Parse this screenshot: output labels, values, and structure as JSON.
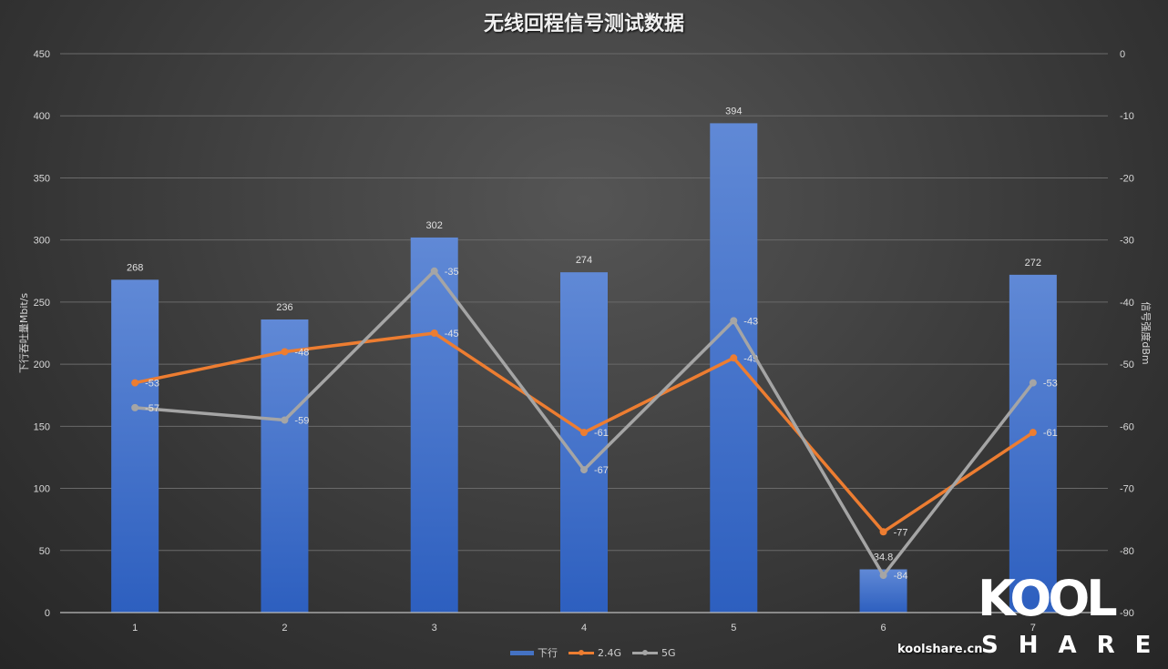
{
  "title": "无线回程信号测试数据",
  "axes": {
    "left_label": "下行吞吐量Mbit/s",
    "right_label": "信号强度dBm",
    "left_ticks": [
      0,
      50,
      100,
      150,
      200,
      250,
      300,
      350,
      400,
      450
    ],
    "right_ticks": [
      -90,
      -80,
      -70,
      -60,
      -50,
      -40,
      -30,
      -20,
      -10,
      0
    ]
  },
  "legend": {
    "items": [
      {
        "label": "下行",
        "type": "bar",
        "color": "#4472c4"
      },
      {
        "label": "2.4G",
        "type": "line",
        "color": "#ed7d31"
      },
      {
        "label": "5G",
        "type": "line",
        "color": "#a5a5a5"
      }
    ]
  },
  "watermark": {
    "url": "koolshare.cn",
    "logo_top": "KOOL",
    "logo_bottom": "SHARE"
  },
  "chart_data": {
    "type": "bar+line",
    "title": "无线回程信号测试数据",
    "categories": [
      "1",
      "2",
      "3",
      "4",
      "5",
      "6",
      "7"
    ],
    "xlabel": "",
    "ylabel": "下行吞吐量Mbit/s",
    "ylabel_right": "信号强度dBm",
    "ylim": [
      0,
      450
    ],
    "ylim_right": [
      -90,
      0
    ],
    "grid": true,
    "legend_position": "bottom",
    "series": [
      {
        "name": "下行",
        "type": "bar",
        "axis": "left",
        "color": "#4472c4",
        "values": [
          268,
          236,
          302,
          274,
          394,
          34.8,
          272
        ]
      },
      {
        "name": "2.4G",
        "type": "line",
        "axis": "right",
        "color": "#ed7d31",
        "values": [
          -53,
          -48,
          -45,
          -61,
          -49,
          -77,
          -61
        ]
      },
      {
        "name": "5G",
        "type": "line",
        "axis": "right",
        "color": "#a5a5a5",
        "values": [
          -57,
          -59,
          -35,
          -67,
          -43,
          -84,
          -53
        ]
      }
    ]
  }
}
